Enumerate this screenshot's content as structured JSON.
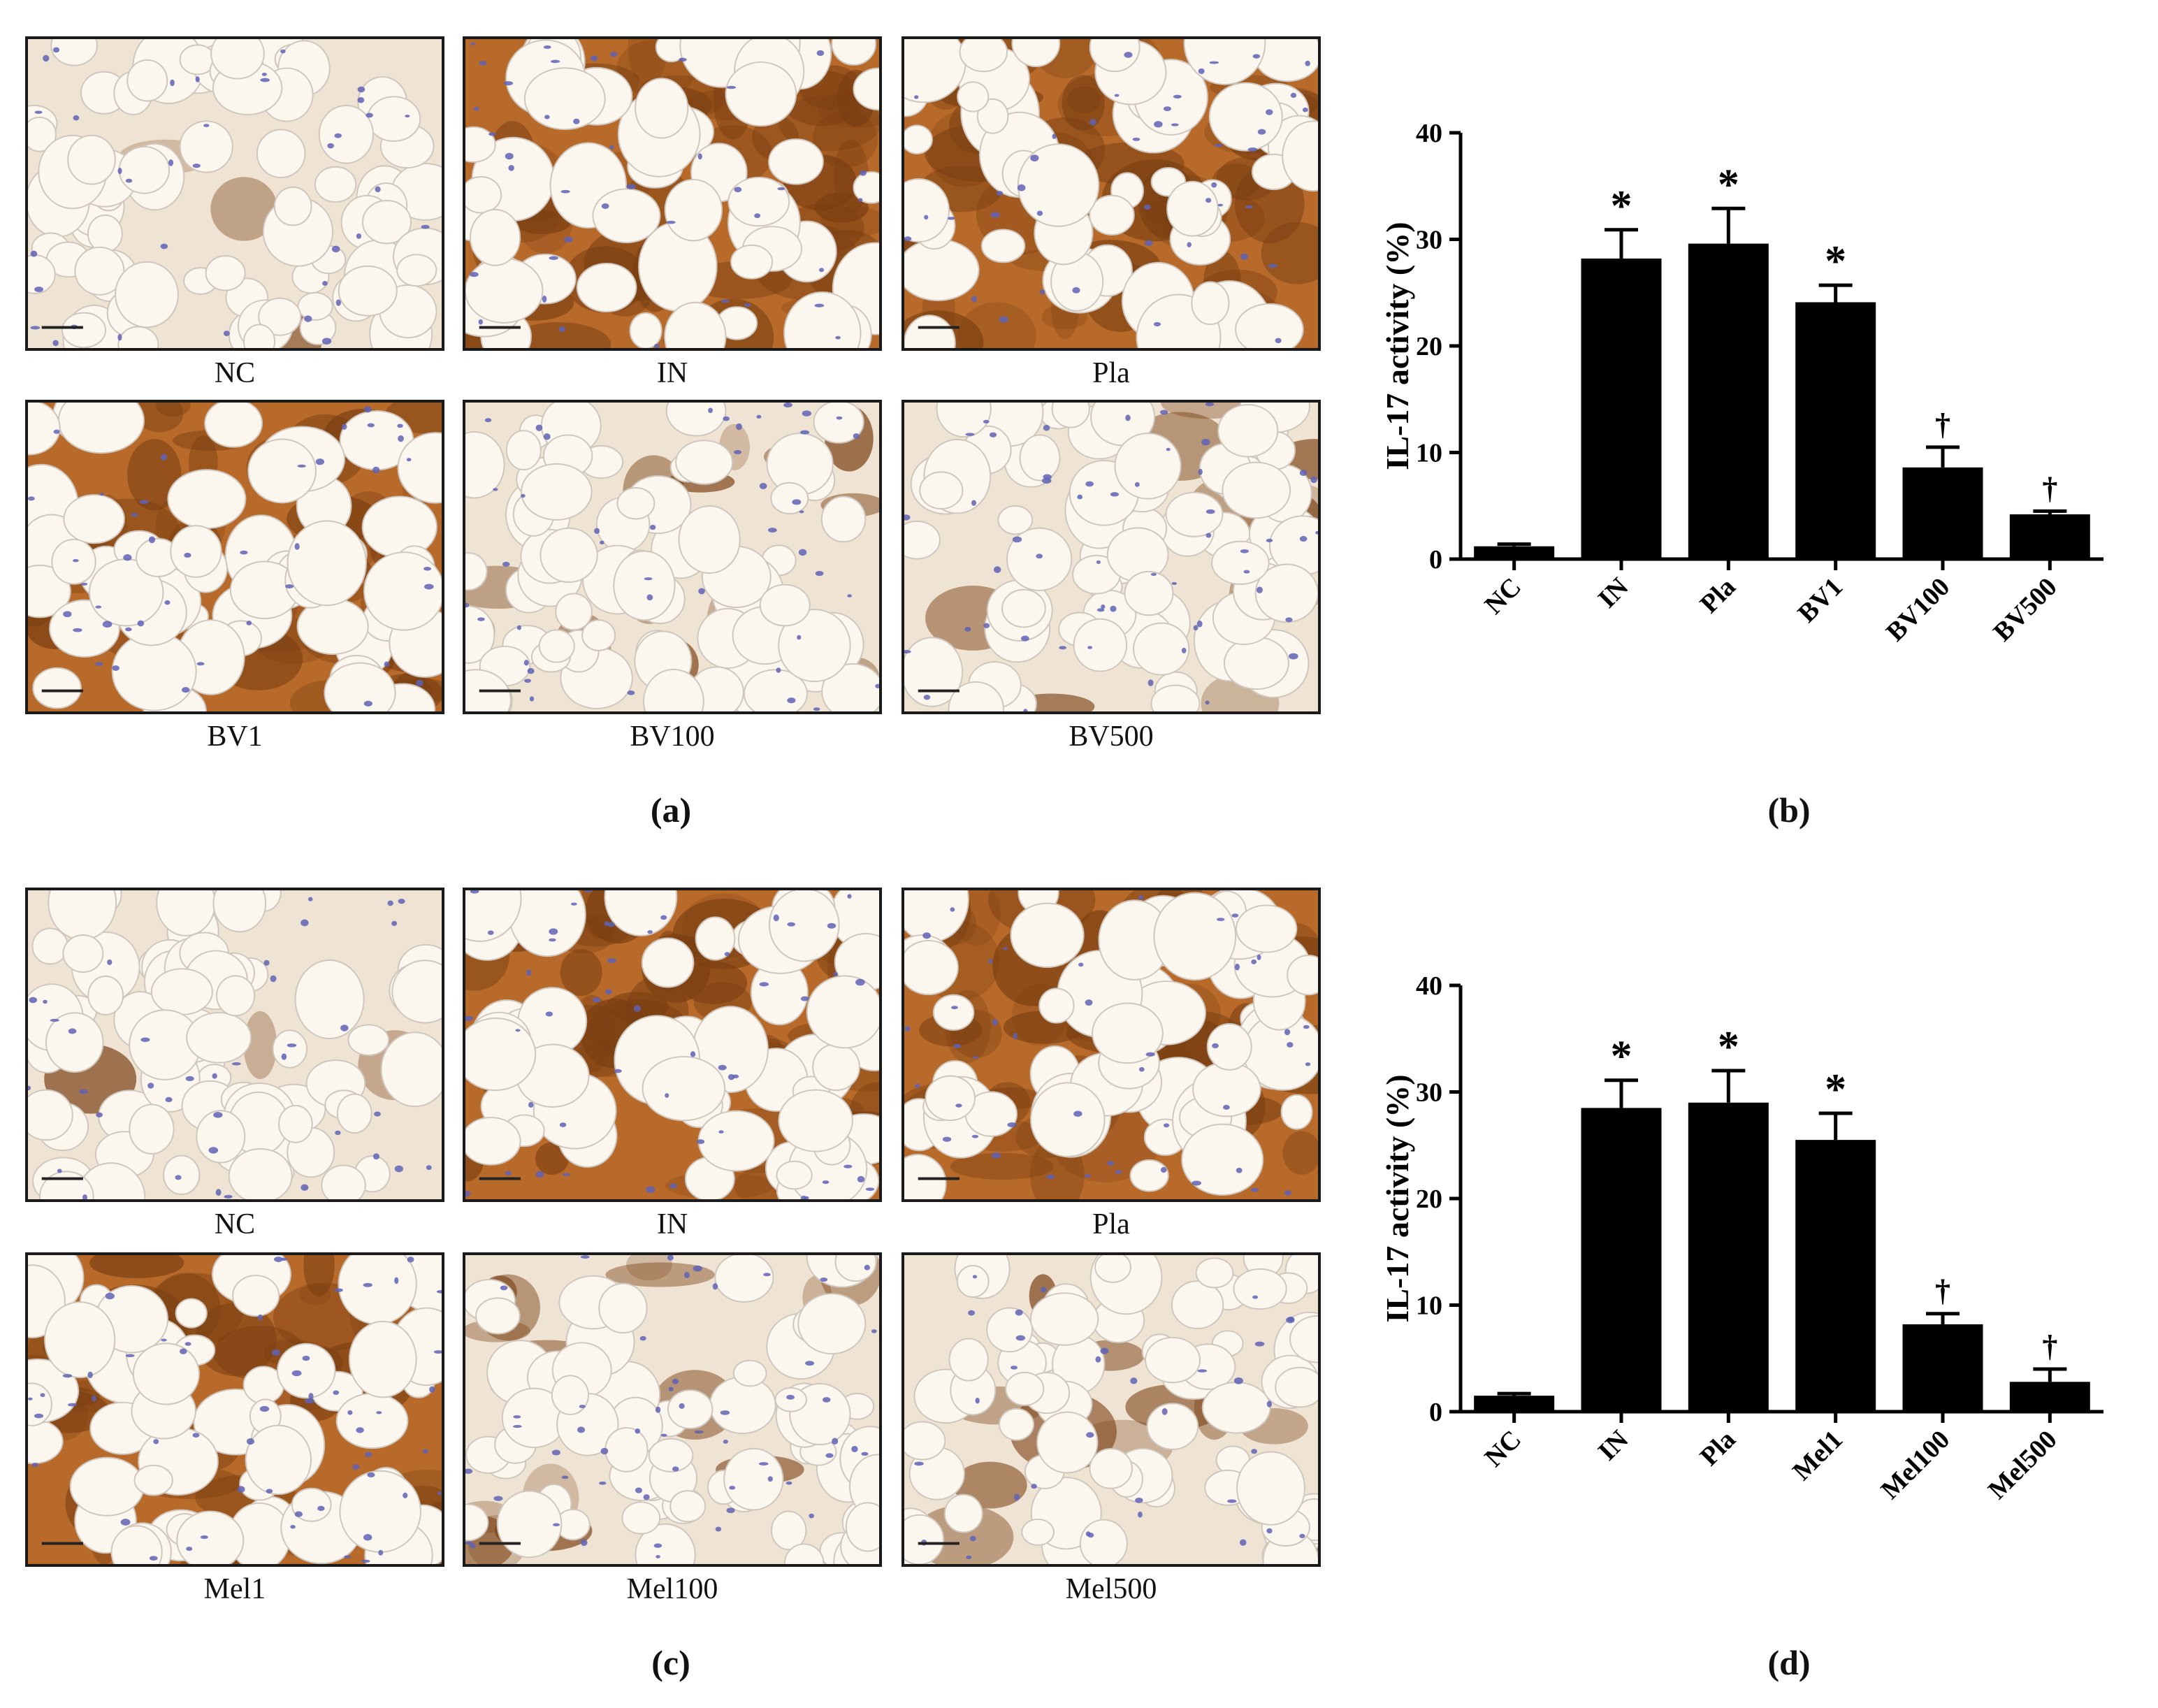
{
  "panels": {
    "a": {
      "letter": "(a)",
      "images": [
        {
          "label": "NC",
          "level": 0.05
        },
        {
          "label": "IN",
          "level": 0.8
        },
        {
          "label": "Pla",
          "level": 0.85
        },
        {
          "label": "BV1",
          "level": 0.75
        },
        {
          "label": "BV100",
          "level": 0.3
        },
        {
          "label": "BV500",
          "level": 0.2
        }
      ]
    },
    "b": {
      "letter": "(b)"
    },
    "c": {
      "letter": "(c)",
      "images": [
        {
          "label": "NC",
          "level": 0.05
        },
        {
          "label": "IN",
          "level": 0.8
        },
        {
          "label": "Pla",
          "level": 0.82
        },
        {
          "label": "Mel1",
          "level": 0.7
        },
        {
          "label": "Mel100",
          "level": 0.35
        },
        {
          "label": "Mel500",
          "level": 0.2
        }
      ]
    },
    "d": {
      "letter": "(d)"
    }
  },
  "colors": {
    "bar": "#000000",
    "fat": "#fbf7ef",
    "stain_dark": "#7a3f12",
    "stain_mid": "#b86a2a",
    "nuclei": "#5f62b5",
    "membrane": "#cfc6bd"
  },
  "chart_data": [
    {
      "type": "bar",
      "panel": "b",
      "categories": [
        "NC",
        "IN",
        "Pla",
        "BV1",
        "BV100",
        "BV500"
      ],
      "values": [
        1.2,
        28.2,
        29.6,
        24.1,
        8.6,
        4.2
      ],
      "errors": [
        0.2,
        2.7,
        3.3,
        1.6,
        1.9,
        0.3
      ],
      "markers": [
        "",
        "*",
        "*",
        "*",
        "†",
        "†"
      ],
      "ylabel": "IL-17 activity (%)",
      "ylim": [
        0,
        40
      ],
      "yticks": [
        0,
        10,
        20,
        30,
        40
      ]
    },
    {
      "type": "bar",
      "panel": "d",
      "categories": [
        "NC",
        "IN",
        "Pla",
        "Mel1",
        "Mel100",
        "Mel500"
      ],
      "values": [
        1.5,
        28.5,
        29.0,
        25.5,
        8.2,
        2.8
      ],
      "errors": [
        0.2,
        2.6,
        3.0,
        2.5,
        1.0,
        1.2
      ],
      "markers": [
        "",
        "*",
        "*",
        "*",
        "†",
        "†"
      ],
      "ylabel": "IL-17 activity (%)",
      "ylim": [
        0,
        40
      ],
      "yticks": [
        0,
        10,
        20,
        30,
        40
      ]
    }
  ]
}
